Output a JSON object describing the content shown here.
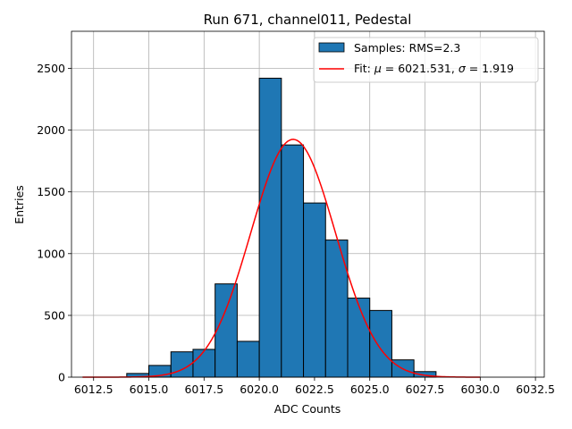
{
  "chart_data": {
    "type": "bar",
    "title": "Run 671, channel011, Pedestal",
    "xlabel": "ADC Counts",
    "ylabel": "Entries",
    "xlim": [
      6011.5,
      6032.9
    ],
    "ylim": [
      0,
      2800
    ],
    "xticks": [
      6012.5,
      6015.0,
      6017.5,
      6020.0,
      6022.5,
      6025.0,
      6027.5,
      6030.0,
      6032.5
    ],
    "xtick_labels": [
      "6012.5",
      "6015.0",
      "6017.5",
      "6020.0",
      "6022.5",
      "6025.0",
      "6027.5",
      "6030.0",
      "6032.5"
    ],
    "yticks": [
      0,
      500,
      1000,
      1500,
      2000,
      2500
    ],
    "ytick_labels": [
      "0",
      "500",
      "1000",
      "1500",
      "2000",
      "2500"
    ],
    "grid": true,
    "legend_position": "top-right",
    "bar_color": "#1f77b4",
    "bar_edge_color": "#000000",
    "fit_color": "#ff0000",
    "series": [
      {
        "name": "Samples: RMS=2.3",
        "kind": "histogram",
        "bins": [
          {
            "x0": 6014.0,
            "x1": 6015.0,
            "value": 30
          },
          {
            "x0": 6015.0,
            "x1": 6016.0,
            "value": 95
          },
          {
            "x0": 6016.0,
            "x1": 6017.0,
            "value": 205
          },
          {
            "x0": 6017.0,
            "x1": 6018.0,
            "value": 225
          },
          {
            "x0": 6018.0,
            "x1": 6019.0,
            "value": 755
          },
          {
            "x0": 6019.0,
            "x1": 6020.0,
            "value": 290
          },
          {
            "x0": 6020.0,
            "x1": 6021.0,
            "value": 2420
          },
          {
            "x0": 6021.0,
            "x1": 6022.0,
            "value": 1880
          },
          {
            "x0": 6022.0,
            "x1": 6023.0,
            "value": 1410
          },
          {
            "x0": 6023.0,
            "x1": 6024.0,
            "value": 1110
          },
          {
            "x0": 6024.0,
            "x1": 6025.0,
            "value": 640
          },
          {
            "x0": 6025.0,
            "x1": 6026.0,
            "value": 540
          },
          {
            "x0": 6026.0,
            "x1": 6027.0,
            "value": 140
          },
          {
            "x0": 6027.0,
            "x1": 6028.0,
            "value": 45
          }
        ]
      },
      {
        "name_prefix": "Fit: ",
        "mu_symbol": "μ",
        "mu_text": " = 6021.531, ",
        "sigma_symbol": "σ",
        "sigma_text": " = 1.919",
        "kind": "gaussian-fit",
        "mu": 6021.531,
        "sigma": 1.919,
        "amplitude": 1925,
        "x_range": [
          6012.0,
          6030.0
        ]
      }
    ]
  }
}
